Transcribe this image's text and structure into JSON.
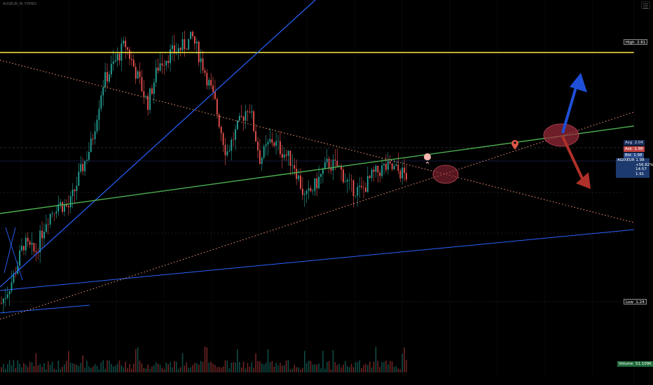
{
  "header": {
    "symbol_line": "AUDEUR_M, FXPRO",
    "sub_line": ""
  },
  "chart_data": {
    "type": "line",
    "title": "",
    "xlabel": "",
    "ylabel": "",
    "price_labels": {
      "high": {
        "label": "High",
        "value": "2.61"
      },
      "avg": {
        "label": "Avg",
        "value": "2.04"
      },
      "ask": {
        "label": "Ask",
        "value": "1.98"
      },
      "bid": {
        "label": "Bid",
        "value": "1.98"
      },
      "current": {
        "label": "AGIXEUR",
        "value": "1.98",
        "change": "+56.82%",
        "countdown": "14:57",
        "prev": "1.91"
      },
      "low": {
        "label": "Low",
        "value": "1.24"
      },
      "volume": {
        "label": "Volume",
        "value": "51.109K"
      }
    },
    "ylim": [
      1.1,
      2.75
    ],
    "price_series_approx": [
      1.3,
      1.42,
      1.6,
      1.55,
      1.72,
      1.8,
      1.78,
      1.95,
      2.1,
      2.4,
      2.5,
      2.6,
      2.45,
      2.3,
      2.5,
      2.55,
      2.58,
      2.63,
      2.48,
      2.3,
      2.05,
      2.18,
      2.3,
      2.02,
      2.12,
      2.06,
      2.0,
      1.82,
      1.9,
      2.0,
      1.98,
      1.88,
      1.86,
      1.94,
      1.98,
      1.97,
      1.94
    ],
    "colors": {
      "background": "#000000",
      "high_line": "#ffeb3b",
      "trend_green": "#4caf50",
      "trend_blue": "#2962ff",
      "dotted_resistance": "#e88a6a",
      "candle_up": "#26a69a",
      "candle_down": "#ef5350",
      "arrow_up": "#1e4fd8",
      "arrow_down": "#b0302a",
      "ellipse": "#9c2a3a"
    }
  }
}
